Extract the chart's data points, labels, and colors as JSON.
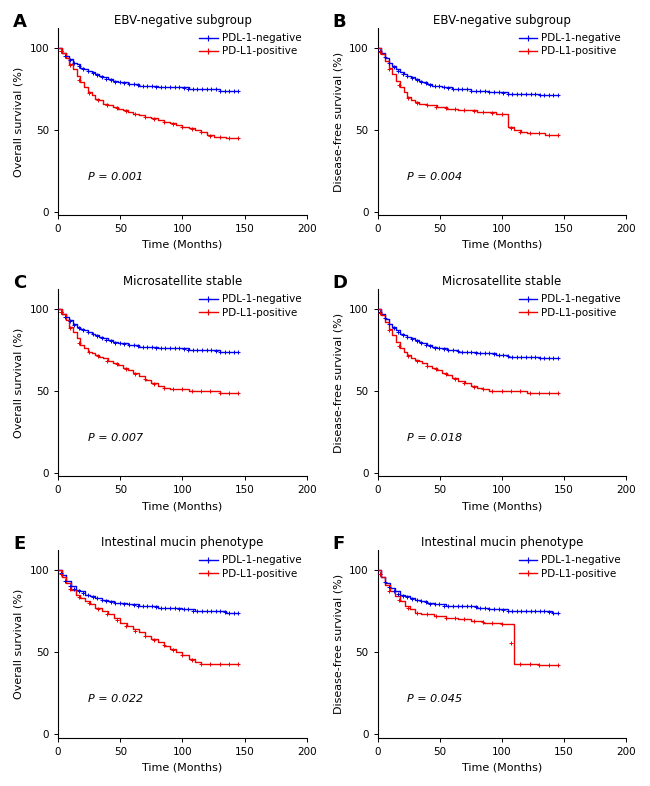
{
  "panels": [
    {
      "label": "A",
      "title": "EBV-negative subgroup",
      "ylabel": "Overall survival (%)",
      "pvalue": "P = 0.001",
      "blue_x": [
        0,
        3,
        6,
        9,
        12,
        15,
        18,
        21,
        24,
        27,
        30,
        33,
        36,
        40,
        44,
        48,
        52,
        56,
        60,
        65,
        70,
        75,
        80,
        85,
        90,
        95,
        100,
        105,
        110,
        115,
        120,
        125,
        130,
        135,
        140,
        145
      ],
      "blue_y": [
        100,
        97,
        95,
        93,
        91,
        90,
        88,
        87,
        86,
        85,
        84,
        83,
        82,
        81,
        80,
        79,
        79,
        78,
        78,
        77,
        77,
        77,
        76,
        76,
        76,
        76,
        76,
        75,
        75,
        75,
        75,
        75,
        74,
        74,
        74,
        74
      ],
      "red_x": [
        0,
        3,
        6,
        9,
        12,
        15,
        18,
        21,
        24,
        27,
        30,
        33,
        36,
        40,
        44,
        48,
        52,
        56,
        60,
        65,
        70,
        75,
        80,
        85,
        90,
        95,
        100,
        105,
        110,
        115,
        120,
        125,
        130,
        135,
        140,
        145
      ],
      "red_y": [
        100,
        97,
        94,
        90,
        87,
        83,
        79,
        76,
        73,
        71,
        69,
        68,
        66,
        65,
        64,
        63,
        62,
        61,
        60,
        59,
        58,
        57,
        56,
        55,
        54,
        53,
        52,
        51,
        50,
        49,
        47,
        46,
        46,
        45,
        45,
        45
      ]
    },
    {
      "label": "B",
      "title": "EBV-negative subgroup",
      "ylabel": "Disease-free survival (%)",
      "pvalue": "P = 0.004",
      "blue_x": [
        0,
        3,
        6,
        9,
        12,
        15,
        18,
        21,
        24,
        27,
        30,
        33,
        36,
        40,
        44,
        48,
        52,
        56,
        60,
        65,
        70,
        75,
        80,
        85,
        90,
        95,
        100,
        105,
        110,
        115,
        120,
        125,
        130,
        135,
        140,
        145
      ],
      "blue_y": [
        100,
        97,
        94,
        91,
        89,
        87,
        85,
        84,
        83,
        82,
        81,
        80,
        79,
        78,
        77,
        77,
        76,
        76,
        75,
        75,
        75,
        74,
        74,
        74,
        73,
        73,
        73,
        72,
        72,
        72,
        72,
        72,
        71,
        71,
        71,
        71
      ],
      "red_x": [
        0,
        3,
        6,
        9,
        12,
        15,
        18,
        21,
        24,
        27,
        30,
        33,
        36,
        40,
        44,
        48,
        52,
        56,
        60,
        65,
        70,
        75,
        80,
        85,
        90,
        95,
        100,
        105,
        110,
        115,
        120,
        125,
        130,
        135,
        140,
        145
      ],
      "red_y": [
        100,
        96,
        92,
        88,
        84,
        80,
        76,
        73,
        70,
        68,
        67,
        66,
        66,
        65,
        65,
        64,
        64,
        63,
        63,
        62,
        62,
        62,
        61,
        61,
        61,
        60,
        60,
        52,
        50,
        49,
        48,
        48,
        48,
        47,
        47,
        47
      ]
    },
    {
      "label": "C",
      "title": "Microsatellite stable",
      "ylabel": "Overall survival (%)",
      "pvalue": "P = 0.007",
      "blue_x": [
        0,
        3,
        6,
        9,
        12,
        15,
        18,
        21,
        24,
        27,
        30,
        33,
        36,
        40,
        44,
        48,
        52,
        56,
        60,
        65,
        70,
        75,
        80,
        85,
        90,
        95,
        100,
        105,
        110,
        115,
        120,
        125,
        130,
        135,
        140,
        145
      ],
      "blue_y": [
        100,
        97,
        95,
        93,
        91,
        89,
        88,
        87,
        86,
        85,
        84,
        83,
        82,
        81,
        80,
        79,
        79,
        78,
        78,
        77,
        77,
        77,
        76,
        76,
        76,
        76,
        76,
        75,
        75,
        75,
        75,
        75,
        74,
        74,
        74,
        74
      ],
      "red_x": [
        0,
        3,
        6,
        9,
        12,
        15,
        18,
        21,
        24,
        27,
        30,
        33,
        36,
        40,
        44,
        48,
        52,
        56,
        60,
        65,
        70,
        75,
        80,
        85,
        90,
        95,
        100,
        105,
        110,
        115,
        120,
        125,
        130,
        135,
        140,
        145
      ],
      "red_y": [
        100,
        97,
        93,
        89,
        86,
        82,
        78,
        76,
        74,
        73,
        72,
        71,
        70,
        68,
        67,
        66,
        64,
        63,
        61,
        59,
        57,
        55,
        53,
        52,
        51,
        51,
        51,
        50,
        50,
        50,
        50,
        50,
        49,
        49,
        49,
        49
      ]
    },
    {
      "label": "D",
      "title": "Microsatellite stable",
      "ylabel": "Disease-free survival (%)",
      "pvalue": "P = 0.018",
      "blue_x": [
        0,
        3,
        6,
        9,
        12,
        15,
        18,
        21,
        24,
        27,
        30,
        33,
        36,
        40,
        44,
        48,
        52,
        56,
        60,
        65,
        70,
        75,
        80,
        85,
        90,
        95,
        100,
        105,
        110,
        115,
        120,
        125,
        130,
        135,
        140,
        145
      ],
      "blue_y": [
        100,
        97,
        94,
        91,
        89,
        87,
        85,
        84,
        83,
        82,
        81,
        80,
        79,
        78,
        77,
        76,
        76,
        75,
        75,
        74,
        74,
        74,
        73,
        73,
        73,
        72,
        72,
        71,
        71,
        71,
        71,
        71,
        70,
        70,
        70,
        70
      ],
      "red_x": [
        0,
        3,
        6,
        9,
        12,
        15,
        18,
        21,
        24,
        27,
        30,
        33,
        36,
        40,
        44,
        48,
        52,
        56,
        60,
        65,
        70,
        75,
        80,
        85,
        90,
        95,
        100,
        105,
        110,
        115,
        120,
        125,
        130,
        135,
        140,
        145
      ],
      "red_y": [
        100,
        96,
        92,
        88,
        84,
        80,
        76,
        74,
        72,
        70,
        69,
        68,
        67,
        65,
        64,
        63,
        61,
        60,
        58,
        56,
        55,
        53,
        52,
        51,
        50,
        50,
        50,
        50,
        50,
        50,
        49,
        49,
        49,
        49,
        49,
        49
      ]
    },
    {
      "label": "E",
      "title": "Intestinal mucin phenotype",
      "ylabel": "Overall survival (%)",
      "pvalue": "P = 0.022",
      "blue_x": [
        0,
        3,
        6,
        10,
        14,
        18,
        22,
        26,
        30,
        35,
        40,
        45,
        50,
        55,
        60,
        65,
        70,
        75,
        80,
        85,
        90,
        95,
        100,
        105,
        110,
        115,
        120,
        125,
        130,
        135,
        140,
        145
      ],
      "blue_y": [
        100,
        97,
        93,
        90,
        88,
        87,
        85,
        84,
        83,
        82,
        81,
        80,
        80,
        79,
        79,
        78,
        78,
        78,
        77,
        77,
        77,
        77,
        76,
        76,
        75,
        75,
        75,
        75,
        75,
        74,
        74,
        74
      ],
      "red_x": [
        0,
        3,
        6,
        10,
        14,
        18,
        22,
        26,
        30,
        35,
        40,
        45,
        50,
        55,
        60,
        65,
        70,
        75,
        80,
        85,
        90,
        95,
        100,
        105,
        110,
        115,
        120,
        125,
        130,
        135,
        140,
        145
      ],
      "red_y": [
        100,
        96,
        92,
        88,
        85,
        83,
        81,
        79,
        77,
        75,
        73,
        71,
        68,
        66,
        64,
        62,
        60,
        58,
        56,
        54,
        52,
        50,
        48,
        46,
        44,
        43,
        43,
        43,
        43,
        43,
        43,
        43
      ]
    },
    {
      "label": "F",
      "title": "Intestinal mucin phenotype",
      "ylabel": "Disease-free survival (%)",
      "pvalue": "P = 0.045",
      "blue_x": [
        0,
        3,
        6,
        10,
        14,
        18,
        22,
        26,
        30,
        35,
        40,
        45,
        50,
        55,
        60,
        65,
        70,
        75,
        80,
        85,
        90,
        95,
        100,
        105,
        110,
        115,
        120,
        125,
        130,
        135,
        140,
        145
      ],
      "blue_y": [
        100,
        96,
        92,
        89,
        87,
        85,
        84,
        83,
        82,
        81,
        80,
        79,
        79,
        78,
        78,
        78,
        78,
        78,
        77,
        77,
        76,
        76,
        76,
        75,
        75,
        75,
        75,
        75,
        75,
        75,
        74,
        74
      ],
      "red_x": [
        0,
        3,
        6,
        10,
        14,
        18,
        22,
        26,
        30,
        35,
        40,
        45,
        50,
        55,
        60,
        65,
        70,
        75,
        80,
        85,
        90,
        95,
        100,
        105,
        110,
        115,
        120,
        125,
        130,
        135,
        140,
        145
      ],
      "red_y": [
        100,
        96,
        91,
        87,
        84,
        81,
        78,
        76,
        74,
        73,
        73,
        72,
        72,
        71,
        71,
        70,
        70,
        69,
        69,
        68,
        68,
        68,
        67,
        67,
        43,
        43,
        43,
        43,
        42,
        42,
        42,
        42
      ]
    }
  ],
  "blue_color": "#0000EE",
  "red_color": "#EE0000",
  "xlim": [
    0,
    200
  ],
  "ylim": [
    -2,
    112
  ],
  "xticks": [
    0,
    50,
    100,
    150,
    200
  ],
  "yticks": [
    0,
    50,
    100
  ],
  "xlabel": "Time (Months)",
  "legend_neg": "PDL-1-negative",
  "legend_pos": "PD-L1-positive",
  "line_width": 1.0,
  "tick_fontsize": 7.5,
  "label_fontsize": 8,
  "title_fontsize": 8.5,
  "panel_label_fontsize": 13,
  "pvalue_fontsize": 8,
  "legend_fontsize": 7.5,
  "blue_censor_n": 40,
  "red_censor_n": 20
}
